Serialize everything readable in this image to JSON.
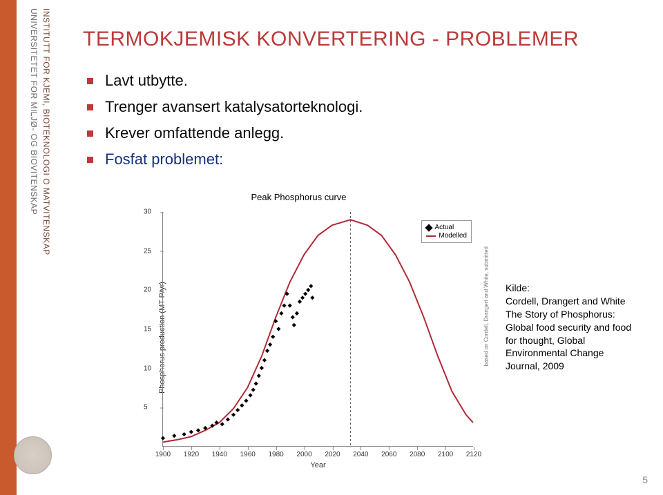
{
  "sidebar": {
    "institute_line": "INSTITUTT FOR KJEMI, BIOTEKNOLOGI O MATVITENSKAP",
    "university_line": "UNIVERSITETET FOR MILJØ- OG BIOVITENSKAP"
  },
  "slide": {
    "title": "TERMOKJEMISK KONVERTERING - PROBLEMER",
    "bullets": [
      {
        "text": "Lavt utbytte."
      },
      {
        "text": "Trenger avansert katalysatorteknologi."
      },
      {
        "text": "Krever omfattende anlegg."
      },
      {
        "text": "Fosfat problemet:",
        "emph": true
      }
    ]
  },
  "chart": {
    "type": "line+scatter",
    "title": "Peak Phosphorus curve",
    "ylabel": "Phosphorus production (MT P/yr)",
    "xlabel": "Year",
    "xlim": [
      1900,
      2120
    ],
    "ylim": [
      0,
      30
    ],
    "xticks": [
      1900,
      1920,
      1940,
      1960,
      1980,
      2000,
      2020,
      2040,
      2060,
      2080,
      2100,
      2120
    ],
    "yticks": [
      5,
      10,
      15,
      20,
      25,
      30
    ],
    "peak_x": 2033,
    "curve_color": "#b02a37",
    "curve_width": 2,
    "axis_color": "#888888",
    "tick_fontsize": 10,
    "label_fontsize": 11,
    "title_fontsize": 13,
    "background_color": "#ffffff",
    "legend": {
      "items": [
        {
          "label": "Actual",
          "marker": "diamond",
          "color": "#000000"
        },
        {
          "label": "Modelled",
          "marker": "line",
          "color": "#b02a37"
        }
      ]
    },
    "attribution": "based on Cordell, Drangert and White, submitted",
    "modelled": [
      [
        1900,
        0.5
      ],
      [
        1910,
        0.8
      ],
      [
        1920,
        1.2
      ],
      [
        1930,
        2.0
      ],
      [
        1940,
        3.0
      ],
      [
        1950,
        4.8
      ],
      [
        1960,
        7.5
      ],
      [
        1970,
        11.5
      ],
      [
        1980,
        16.5
      ],
      [
        1990,
        21.0
      ],
      [
        2000,
        24.5
      ],
      [
        2010,
        27.0
      ],
      [
        2020,
        28.3
      ],
      [
        2033,
        29.0
      ],
      [
        2045,
        28.3
      ],
      [
        2055,
        27.0
      ],
      [
        2065,
        24.5
      ],
      [
        2075,
        21.0
      ],
      [
        2085,
        16.5
      ],
      [
        2095,
        11.5
      ],
      [
        2105,
        7.0
      ],
      [
        2115,
        4.0
      ],
      [
        2120,
        3.0
      ]
    ],
    "actual": [
      [
        1900,
        1.0
      ],
      [
        1908,
        1.3
      ],
      [
        1915,
        1.5
      ],
      [
        1920,
        1.8
      ],
      [
        1925,
        2.0
      ],
      [
        1930,
        2.3
      ],
      [
        1935,
        2.6
      ],
      [
        1938,
        3.0
      ],
      [
        1942,
        2.8
      ],
      [
        1946,
        3.4
      ],
      [
        1950,
        4.0
      ],
      [
        1953,
        4.6
      ],
      [
        1956,
        5.2
      ],
      [
        1959,
        5.8
      ],
      [
        1962,
        6.5
      ],
      [
        1964,
        7.2
      ],
      [
        1966,
        8.0
      ],
      [
        1968,
        9.0
      ],
      [
        1970,
        10.0
      ],
      [
        1972,
        11.0
      ],
      [
        1974,
        12.2
      ],
      [
        1976,
        13.0
      ],
      [
        1978,
        14.0
      ],
      [
        1980,
        16.0
      ],
      [
        1982,
        15.0
      ],
      [
        1984,
        17.0
      ],
      [
        1986,
        18.0
      ],
      [
        1988,
        19.5
      ],
      [
        1990,
        18.0
      ],
      [
        1992,
        16.5
      ],
      [
        1993,
        15.5
      ],
      [
        1995,
        17.0
      ],
      [
        1997,
        18.5
      ],
      [
        1999,
        19.0
      ],
      [
        2001,
        19.5
      ],
      [
        2003,
        20.0
      ],
      [
        2005,
        20.5
      ],
      [
        2006,
        19.0
      ]
    ]
  },
  "source": {
    "heading": "Kilde:",
    "lines": [
      "Cordell, Drangert and White",
      "The Story of Phosphorus:",
      "Global food security and food",
      "for thought, Global",
      "Environmental Change",
      "Journal, 2009"
    ]
  },
  "page_number": "5",
  "colors": {
    "accent_orange": "#c85a2e",
    "title_red": "#bb3a3a",
    "emph_blue": "#13317f"
  }
}
